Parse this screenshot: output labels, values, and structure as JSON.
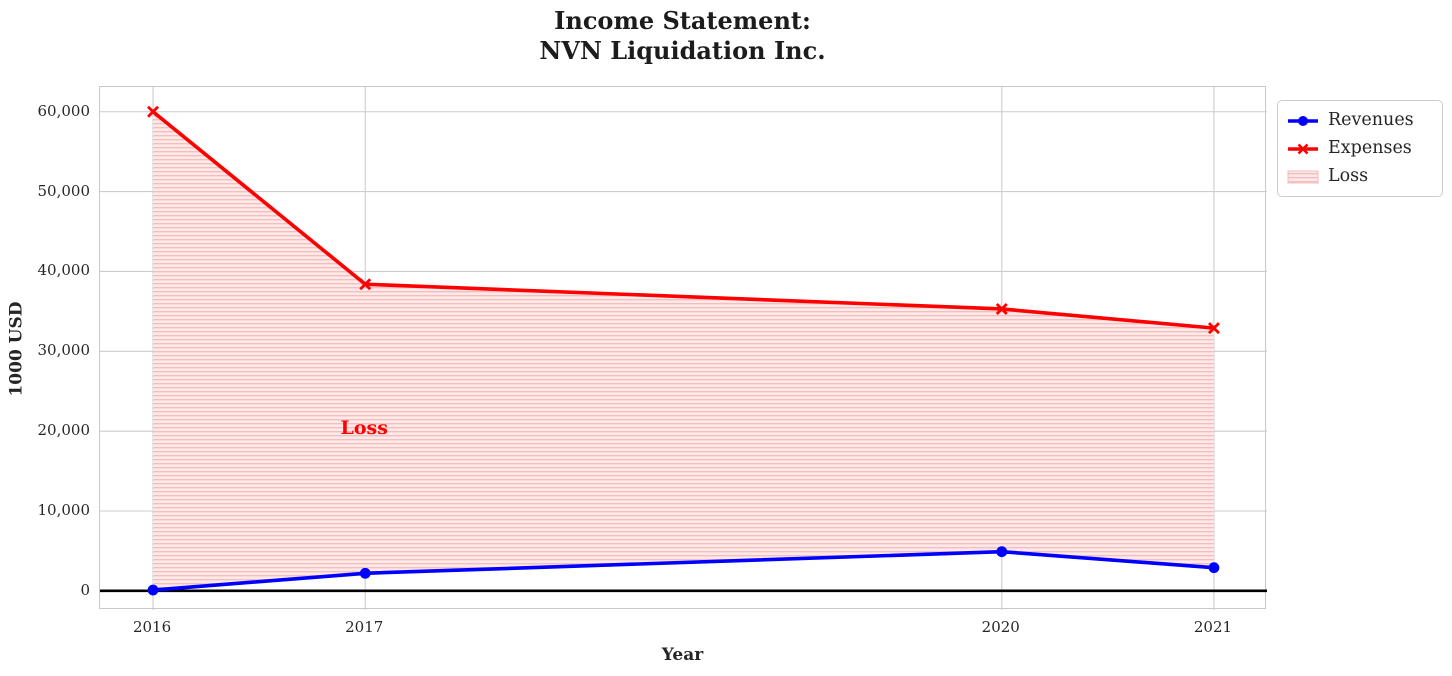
{
  "chart_data": {
    "type": "line",
    "title": "Income Statement:\nNVN Liquidation Inc.",
    "title_lines": [
      "Income Statement:",
      "NVN Liquidation Inc."
    ],
    "xlabel": "Year",
    "ylabel": "1000 USD",
    "x": [
      2016,
      2017,
      2020,
      2021
    ],
    "series": [
      {
        "name": "Revenues",
        "color": "#0000ff",
        "marker": "circle",
        "values": [
          100,
          2200,
          4900,
          2900
        ]
      },
      {
        "name": "Expenses",
        "color": "#ff0000",
        "marker": "x",
        "values": [
          60000,
          38400,
          35300,
          32900
        ]
      }
    ],
    "fill_between": {
      "label": "Loss",
      "upper_series": "Expenses",
      "lower_series": "Revenues",
      "face_color": "#fde9e9",
      "hatch_color": "#f5bcbc",
      "hatch": "horizontal-lines"
    },
    "annotation": {
      "text": "Loss",
      "x": 2017,
      "y": 20000,
      "color": "#ff0000"
    },
    "xlim": [
      2015.75,
      2021.25
    ],
    "ylim": [
      -2400,
      63100
    ],
    "xticks": [
      2016,
      2017,
      2020,
      2021
    ],
    "xtick_labels": [
      "2016",
      "2017",
      "2020",
      "2021"
    ],
    "yticks": [
      0,
      10000,
      20000,
      30000,
      40000,
      50000,
      60000
    ],
    "ytick_labels": [
      "0",
      "10,000",
      "20,000",
      "30,000",
      "40,000",
      "50,000",
      "60,000"
    ],
    "grid": true,
    "grid_color": "#cccccc",
    "zero_line": true,
    "zero_line_color": "#000000",
    "text_color": "#262626",
    "legend_position": "outside-upper-right"
  },
  "legend": {
    "entries": [
      "Revenues",
      "Expenses",
      "Loss"
    ]
  }
}
